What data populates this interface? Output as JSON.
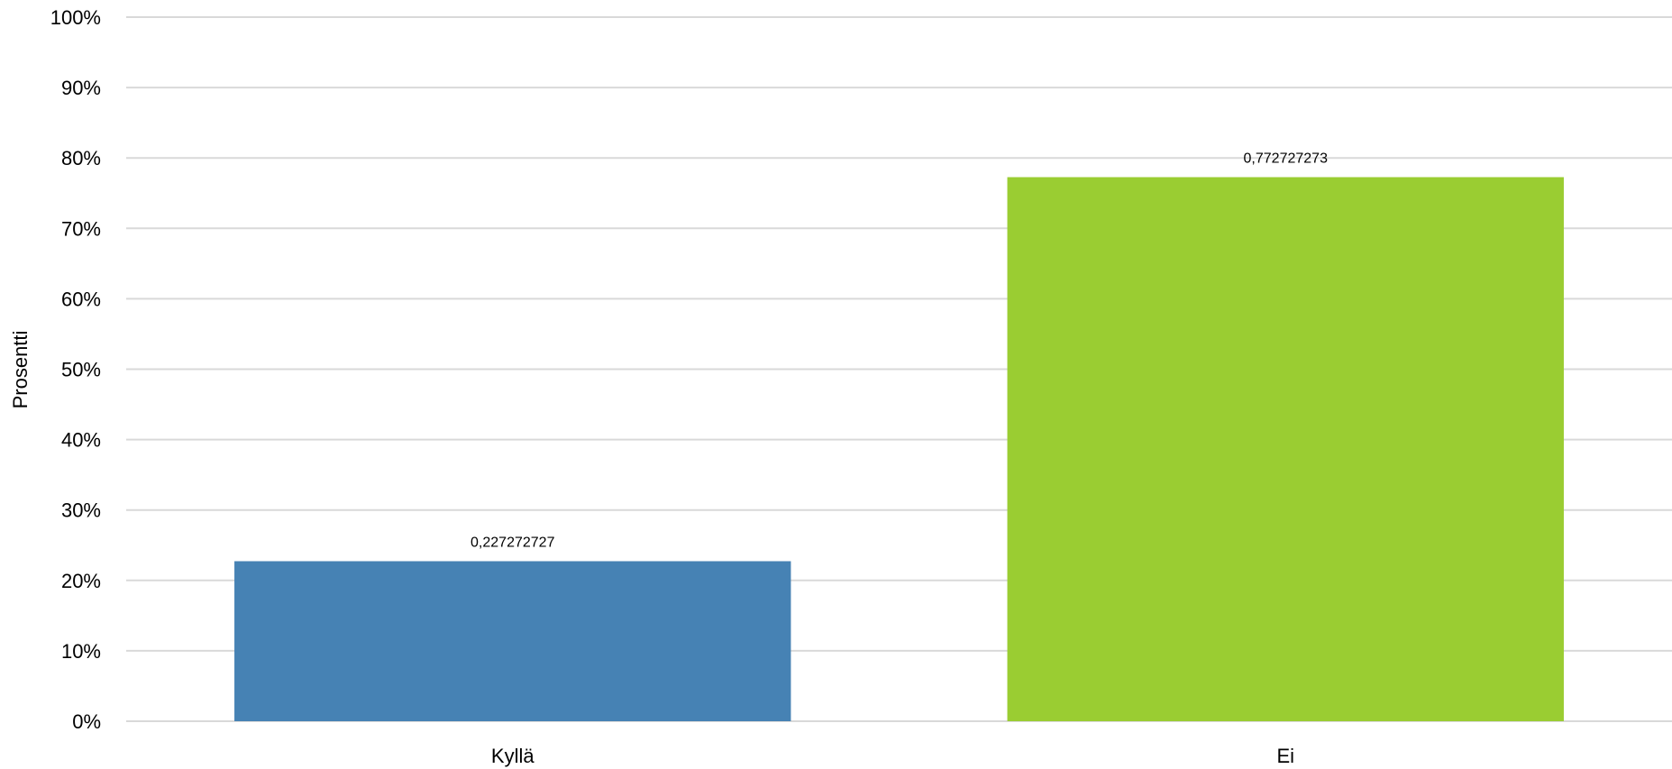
{
  "chart_data": {
    "type": "bar",
    "title": "",
    "xlabel": "",
    "ylabel": "Prosentti",
    "categories": [
      "Kyllä",
      "Ei"
    ],
    "values": [
      0.227272727,
      0.772727273
    ],
    "data_labels": [
      "0,227272727",
      "0,772727273"
    ],
    "bar_colors": [
      "#4682B4",
      "#9ACD32"
    ],
    "ylim": [
      0,
      1
    ],
    "y_ticks": [
      0,
      0.1,
      0.2,
      0.3,
      0.4,
      0.5,
      0.6,
      0.7,
      0.8,
      0.9,
      1.0
    ],
    "y_tick_labels": [
      "0%",
      "10%",
      "20%",
      "30%",
      "40%",
      "50%",
      "60%",
      "70%",
      "80%",
      "90%",
      "100%"
    ],
    "grid": true,
    "legend": "none"
  },
  "colors": {
    "grid": "#d9d9d9",
    "text": "#000000"
  }
}
